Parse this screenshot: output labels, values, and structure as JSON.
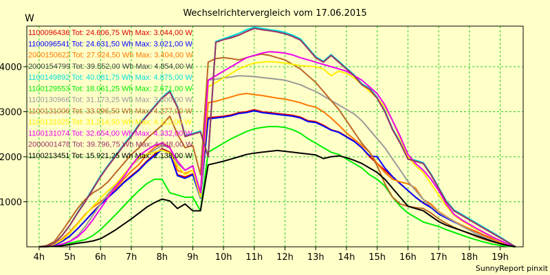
{
  "chart_data": {
    "type": "line",
    "title": "Wechselrichtervergleich vom 17.06.2015",
    "ylabel": "W",
    "footer": "SunnyReport pinxit",
    "x_ticks": [
      "4h",
      "5h",
      "6h",
      "7h",
      "8h",
      "9h",
      "10h",
      "11h",
      "12h",
      "13h",
      "14h",
      "15h",
      "16h",
      "17h",
      "18h",
      "19h"
    ],
    "y_ticks": [
      1000,
      2000,
      3000,
      4000
    ],
    "xlim": [
      3.6,
      19.75
    ],
    "ylim": [
      0,
      4900
    ],
    "grid": true,
    "legend_placement": "top-left",
    "x": [
      4.0,
      4.25,
      4.5,
      4.75,
      5.0,
      5.25,
      5.5,
      5.75,
      6.0,
      6.25,
      6.5,
      6.75,
      7.0,
      7.25,
      7.5,
      7.75,
      8.0,
      8.25,
      8.5,
      8.75,
      9.0,
      9.25,
      9.5,
      9.75,
      10.0,
      10.25,
      10.5,
      10.75,
      11.0,
      11.25,
      11.5,
      11.75,
      12.0,
      12.25,
      12.5,
      12.75,
      13.0,
      13.25,
      13.5,
      13.75,
      14.0,
      14.25,
      14.5,
      14.75,
      15.0,
      15.25,
      15.5,
      15.75,
      16.0,
      16.25,
      16.5,
      16.75,
      17.0,
      17.25,
      17.5,
      17.75,
      18.0,
      18.25,
      18.5,
      18.75,
      19.0,
      19.25,
      19.5
    ],
    "series": [
      {
        "name": "1100096436 Tot: 24.606,75 Wh Max: 3.044,00 W",
        "color": "#dd0000",
        "values": [
          0,
          10,
          40,
          120,
          240,
          400,
          580,
          770,
          950,
          1100,
          1260,
          1430,
          1580,
          1720,
          1900,
          2050,
          2180,
          2100,
          1600,
          1550,
          1620,
          1100,
          2870,
          2880,
          2900,
          2930,
          2980,
          3000,
          3044,
          3000,
          2980,
          2960,
          2940,
          2920,
          2880,
          2800,
          2780,
          2700,
          2600,
          2550,
          2450,
          2350,
          2200,
          2000,
          1850,
          1700,
          1550,
          1400,
          1250,
          1100,
          980,
          880,
          740,
          650,
          560,
          480,
          400,
          330,
          250,
          180,
          110,
          50,
          0
        ]
      },
      {
        "name": "1100096541 Tot: 24.631,50 Wh Max: 3.021,00 W",
        "color": "#0000ff",
        "values": [
          0,
          10,
          40,
          120,
          240,
          400,
          580,
          760,
          940,
          1100,
          1250,
          1420,
          1560,
          1700,
          1880,
          2020,
          2160,
          2080,
          1580,
          1520,
          1600,
          1080,
          2840,
          2860,
          2880,
          2910,
          2960,
          2980,
          3021,
          2980,
          2960,
          2940,
          2920,
          2900,
          2860,
          2780,
          2760,
          2680,
          2590,
          2540,
          2440,
          2340,
          2200,
          2020,
          2000,
          1750,
          1560,
          1400,
          1250,
          1100,
          970,
          870,
          730,
          640,
          550,
          470,
          390,
          320,
          240,
          170,
          100,
          40,
          0
        ]
      },
      {
        "name": "2000150622 Tot: 27.924,50 Wh Max: 3.404,00 W",
        "color": "#ff7700",
        "values": [
          0,
          15,
          60,
          180,
          330,
          520,
          720,
          880,
          1000,
          1150,
          1300,
          1500,
          1680,
          1830,
          2050,
          2200,
          2300,
          2220,
          1700,
          1630,
          1700,
          1150,
          3200,
          3230,
          3280,
          3330,
          3380,
          3404,
          3380,
          3360,
          3330,
          3300,
          3280,
          3240,
          3200,
          3140,
          3100,
          3000,
          2860,
          2700,
          2530,
          2390,
          2250,
          2100,
          1850,
          1650,
          1500,
          1440,
          1400,
          1300,
          1050,
          950,
          780,
          670,
          570,
          480,
          400,
          320,
          240,
          170,
          100,
          40,
          0
        ]
      },
      {
        "name": "2000154799 Tot: 39.552,00 Wh Max: 4.854,00 W",
        "color": "#444444",
        "values": [
          0,
          20,
          80,
          250,
          480,
          750,
          1000,
          1280,
          1560,
          1800,
          2020,
          2250,
          2450,
          2700,
          2900,
          3100,
          3300,
          3450,
          3100,
          2450,
          2500,
          2550,
          2000,
          4550,
          4600,
          4650,
          4700,
          4780,
          4854,
          4820,
          4800,
          4780,
          4740,
          4680,
          4600,
          4400,
          4200,
          4100,
          4250,
          4100,
          3950,
          3800,
          3600,
          3500,
          3300,
          3000,
          2600,
          2300,
          1950,
          1900,
          1850,
          1600,
          1300,
          1000,
          800,
          700,
          600,
          500,
          400,
          300,
          200,
          100,
          0
        ]
      },
      {
        "name": "1100149892 Tot: 40.081,75 Wh Max: 4.875,00 W",
        "color": "#00dddd",
        "values": [
          0,
          20,
          80,
          250,
          480,
          760,
          1020,
          1300,
          1580,
          1820,
          2040,
          2270,
          2480,
          2720,
          2920,
          3120,
          3320,
          3470,
          3120,
          2470,
          2520,
          2570,
          2010,
          4560,
          4620,
          4680,
          4740,
          4820,
          4875,
          4850,
          4820,
          4800,
          4760,
          4700,
          4620,
          4420,
          4220,
          4120,
          4270,
          4120,
          3970,
          3820,
          3620,
          3520,
          3320,
          3020,
          2620,
          2320,
          1970,
          1920,
          1870,
          1620,
          1320,
          1020,
          820,
          720,
          620,
          520,
          420,
          320,
          220,
          110,
          0
        ]
      },
      {
        "name": "1100129553 Tot: 18.061,25 Wh Max: 2.671,00 W",
        "color": "#00ee00",
        "values": [
          0,
          5,
          15,
          40,
          80,
          120,
          160,
          250,
          380,
          550,
          720,
          900,
          1080,
          1250,
          1400,
          1500,
          1500,
          1200,
          1150,
          1100,
          1100,
          800,
          2100,
          2200,
          2300,
          2400,
          2480,
          2560,
          2620,
          2650,
          2671,
          2670,
          2650,
          2600,
          2520,
          2400,
          2300,
          2200,
          2100,
          2050,
          1950,
          1850,
          1750,
          1600,
          1500,
          1350,
          1100,
          900,
          750,
          650,
          550,
          500,
          450,
          380,
          320,
          260,
          200,
          150,
          100,
          60,
          30,
          10,
          0
        ]
      },
      {
        "name": "1100130966 Tot: 31.173,25 Wh Max: 3.800,00 W",
        "color": "#999999",
        "values": [
          0,
          5,
          20,
          60,
          120,
          250,
          450,
          700,
          950,
          1180,
          1380,
          1580,
          1800,
          1950,
          2050,
          2150,
          2250,
          2200,
          1850,
          1700,
          1800,
          1200,
          3700,
          3720,
          3750,
          3770,
          3800,
          3790,
          3780,
          3760,
          3740,
          3720,
          3700,
          3650,
          3600,
          3520,
          3450,
          3350,
          3250,
          3150,
          3050,
          2950,
          2800,
          2600,
          2400,
          2200,
          1950,
          1700,
          1450,
          1250,
          1050,
          900,
          760,
          660,
          560,
          460,
          370,
          280,
          200,
          130,
          70,
          25,
          0
        ]
      },
      {
        "name": "1100131006 Tot: 33.096,50 Wh Max: 4.277,00 W",
        "color": "#bb6622",
        "values": [
          0,
          30,
          120,
          350,
          600,
          850,
          1050,
          1200,
          1300,
          1450,
          1650,
          1850,
          2050,
          2200,
          2400,
          2550,
          2700,
          2900,
          2500,
          2200,
          2250,
          1600,
          4100,
          4180,
          4200,
          4180,
          4150,
          4200,
          4250,
          4277,
          4250,
          4200,
          4150,
          4050,
          3950,
          3800,
          3650,
          3450,
          3250,
          3050,
          2800,
          2550,
          2300,
          2100,
          1800,
          1400,
          1100,
          950,
          900,
          870,
          850,
          750,
          620,
          520,
          430,
          360,
          290,
          220,
          160,
          110,
          70,
          30,
          0
        ]
      },
      {
        "name": "1100131025 Tot: 31.214,50 Wh Max: 4.112,00 W",
        "color": "#ffee00",
        "values": [
          0,
          20,
          60,
          150,
          300,
          500,
          700,
          900,
          1080,
          1250,
          1400,
          1600,
          1800,
          1980,
          2050,
          2100,
          2150,
          2080,
          1800,
          1600,
          1700,
          1100,
          3550,
          3650,
          3750,
          3850,
          3950,
          4020,
          4080,
          4100,
          4112,
          4100,
          4080,
          4050,
          4020,
          4010,
          4000,
          3950,
          3800,
          3900,
          3850,
          3750,
          3600,
          3450,
          3300,
          3100,
          2800,
          2400,
          2000,
          1800,
          1650,
          1400,
          1150,
          900,
          700,
          580,
          480,
          380,
          300,
          210,
          130,
          60,
          0
        ]
      },
      {
        "name": "1100131074 Tot: 32.654,00 Wh Max: 4.332,00 W",
        "color": "#ee00ee",
        "values": [
          0,
          5,
          20,
          60,
          120,
          220,
          380,
          600,
          850,
          1100,
          1350,
          1550,
          1800,
          2020,
          2150,
          2250,
          2300,
          2200,
          1900,
          1700,
          1800,
          1200,
          3700,
          3800,
          3900,
          4000,
          4100,
          4200,
          4250,
          4300,
          4332,
          4320,
          4300,
          4260,
          4200,
          4150,
          4100,
          4050,
          4000,
          3950,
          3900,
          3800,
          3700,
          3550,
          3400,
          3150,
          2800,
          2450,
          2050,
          1850,
          1700,
          1500,
          1250,
          950,
          720,
          600,
          500,
          400,
          310,
          220,
          140,
          60,
          0
        ]
      },
      {
        "name": "2000001478 Tot: 39.796,75 Wh Max: 4.848,00 W",
        "color": "#993366",
        "values": [
          0,
          20,
          80,
          250,
          480,
          750,
          1000,
          1280,
          1560,
          1800,
          2020,
          2250,
          2450,
          2700,
          2900,
          3100,
          3300,
          3440,
          3100,
          2450,
          2500,
          2550,
          2000,
          4540,
          4600,
          4640,
          4700,
          4780,
          4848,
          4820,
          4800,
          4770,
          4730,
          4670,
          4590,
          4400,
          4200,
          4100,
          4250,
          4100,
          3950,
          3800,
          3600,
          3500,
          3300,
          3000,
          2600,
          2300,
          1950,
          1900,
          1850,
          1600,
          1300,
          1000,
          800,
          700,
          600,
          500,
          400,
          300,
          200,
          100,
          0
        ]
      },
      {
        "name": "1100213451 Tot: 15.921,25 Wh Max: 2.138,00 W",
        "color": "#000000",
        "values": [
          0,
          5,
          10,
          25,
          50,
          80,
          100,
          130,
          180,
          280,
          380,
          500,
          620,
          750,
          880,
          980,
          1060,
          1020,
          850,
          950,
          800,
          800,
          1820,
          1860,
          1900,
          1950,
          2000,
          2050,
          2080,
          2100,
          2120,
          2138,
          2120,
          2100,
          2080,
          2060,
          2040,
          1960,
          2000,
          2020,
          1980,
          1920,
          1850,
          1750,
          1650,
          1500,
          1300,
          1100,
          900,
          850,
          800,
          680,
          560,
          480,
          420,
          360,
          300,
          240,
          180,
          120,
          70,
          30,
          0
        ]
      }
    ]
  }
}
